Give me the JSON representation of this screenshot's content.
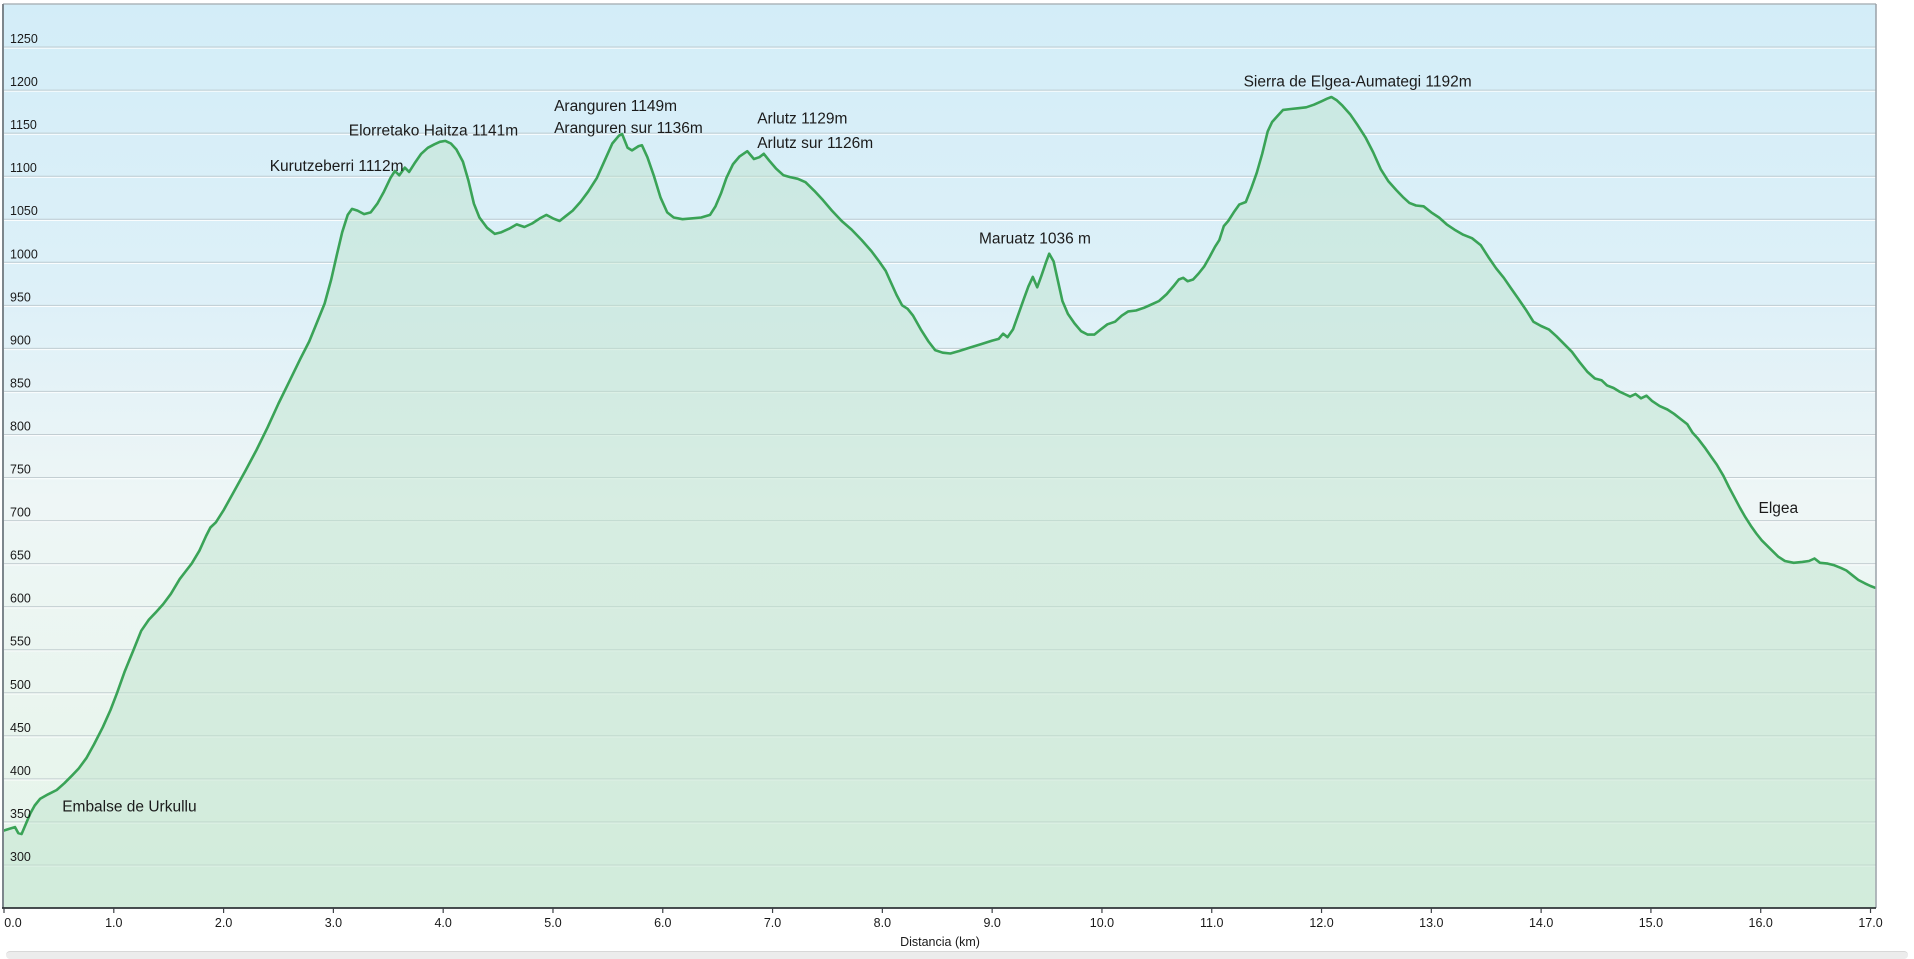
{
  "chart_data": {
    "type": "area",
    "title": "",
    "xlabel": "Distancia (km)",
    "ylabel": "",
    "x_range": [
      0,
      17.05
    ],
    "y_range_drawn": [
      250,
      1300
    ],
    "grid": true,
    "legend": "none",
    "x_ticks": [
      {
        "v": 0,
        "label": "0.0"
      },
      {
        "v": 1,
        "label": "1.0"
      },
      {
        "v": 2,
        "label": "2.0"
      },
      {
        "v": 3,
        "label": "3.0"
      },
      {
        "v": 4,
        "label": "4.0"
      },
      {
        "v": 5,
        "label": "5.0"
      },
      {
        "v": 6,
        "label": "6.0"
      },
      {
        "v": 7,
        "label": "7.0"
      },
      {
        "v": 8,
        "label": "8.0"
      },
      {
        "v": 9,
        "label": "9.0"
      },
      {
        "v": 10,
        "label": "10.0"
      },
      {
        "v": 11,
        "label": "11.0"
      },
      {
        "v": 12,
        "label": "12.0"
      },
      {
        "v": 13,
        "label": "13.0"
      },
      {
        "v": 14,
        "label": "14.0"
      },
      {
        "v": 15,
        "label": "15.0"
      },
      {
        "v": 16,
        "label": "16.0"
      },
      {
        "v": 17,
        "label": "17.0"
      }
    ],
    "y_ticks": [
      1250,
      1200,
      1150,
      1100,
      1050,
      1000,
      950,
      900,
      850,
      800,
      750,
      700,
      650,
      600,
      550,
      500,
      450,
      400,
      350,
      300
    ],
    "annotations": [
      {
        "text": "Embalse de Urkullu",
        "km": 0.53,
        "elev": 362
      },
      {
        "text": "Kurutzeberri 1112m",
        "km": 2.42,
        "elev": 1106
      },
      {
        "text": "Elorretako Haitza 1141m",
        "km": 3.14,
        "elev": 1147
      },
      {
        "text": "Aranguren 1149m",
        "km": 5.01,
        "elev": 1176
      },
      {
        "text": "Aranguren sur 1136m",
        "km": 5.01,
        "elev": 1150
      },
      {
        "text": "Arlutz 1129m",
        "km": 6.86,
        "elev": 1161
      },
      {
        "text": "Arlutz sur 1126m",
        "km": 6.86,
        "elev": 1133
      },
      {
        "text": "Maruatz 1036 m",
        "km": 8.88,
        "elev": 1022
      },
      {
        "text": "Sierra de Elgea-Aumategi 1192m",
        "km": 11.29,
        "elev": 1204
      },
      {
        "text": "Elgea",
        "km": 15.98,
        "elev": 709
      }
    ],
    "series": [
      {
        "name": "elevation_profile",
        "points": [
          [
            0,
            340
          ],
          [
            0.05,
            342
          ],
          [
            0.1,
            344
          ],
          [
            0.13,
            337
          ],
          [
            0.16,
            336
          ],
          [
            0.2,
            348
          ],
          [
            0.24,
            360
          ],
          [
            0.28,
            369
          ],
          [
            0.33,
            377
          ],
          [
            0.4,
            382
          ],
          [
            0.48,
            387
          ],
          [
            0.55,
            395
          ],
          [
            0.62,
            404
          ],
          [
            0.68,
            412
          ],
          [
            0.75,
            424
          ],
          [
            0.82,
            440
          ],
          [
            0.9,
            460
          ],
          [
            0.97,
            480
          ],
          [
            1.03,
            500
          ],
          [
            1.1,
            525
          ],
          [
            1.18,
            550
          ],
          [
            1.25,
            572
          ],
          [
            1.32,
            585
          ],
          [
            1.38,
            593
          ],
          [
            1.45,
            603
          ],
          [
            1.52,
            615
          ],
          [
            1.6,
            632
          ],
          [
            1.66,
            642
          ],
          [
            1.71,
            650
          ],
          [
            1.78,
            665
          ],
          [
            1.84,
            682
          ],
          [
            1.88,
            692
          ],
          [
            1.93,
            698
          ],
          [
            2.0,
            712
          ],
          [
            2.1,
            735
          ],
          [
            2.2,
            758
          ],
          [
            2.3,
            782
          ],
          [
            2.4,
            808
          ],
          [
            2.5,
            836
          ],
          [
            2.6,
            862
          ],
          [
            2.7,
            888
          ],
          [
            2.78,
            908
          ],
          [
            2.85,
            930
          ],
          [
            2.92,
            952
          ],
          [
            2.98,
            980
          ],
          [
            3.03,
            1008
          ],
          [
            3.08,
            1035
          ],
          [
            3.13,
            1055
          ],
          [
            3.17,
            1062
          ],
          [
            3.22,
            1060
          ],
          [
            3.28,
            1056
          ],
          [
            3.34,
            1058
          ],
          [
            3.4,
            1068
          ],
          [
            3.46,
            1082
          ],
          [
            3.52,
            1098
          ],
          [
            3.56,
            1106
          ],
          [
            3.6,
            1101
          ],
          [
            3.65,
            1110
          ],
          [
            3.69,
            1105
          ],
          [
            3.74,
            1115
          ],
          [
            3.8,
            1126
          ],
          [
            3.86,
            1133
          ],
          [
            3.92,
            1137
          ],
          [
            3.97,
            1140
          ],
          [
            4.02,
            1141
          ],
          [
            4.07,
            1138
          ],
          [
            4.12,
            1131
          ],
          [
            4.18,
            1117
          ],
          [
            4.23,
            1095
          ],
          [
            4.28,
            1068
          ],
          [
            4.33,
            1052
          ],
          [
            4.4,
            1040
          ],
          [
            4.47,
            1033
          ],
          [
            4.53,
            1035
          ],
          [
            4.6,
            1039
          ],
          [
            4.67,
            1044
          ],
          [
            4.74,
            1041
          ],
          [
            4.81,
            1045
          ],
          [
            4.88,
            1051
          ],
          [
            4.94,
            1055
          ],
          [
            5.0,
            1051
          ],
          [
            5.06,
            1048
          ],
          [
            5.12,
            1054
          ],
          [
            5.18,
            1060
          ],
          [
            5.25,
            1070
          ],
          [
            5.32,
            1082
          ],
          [
            5.4,
            1098
          ],
          [
            5.47,
            1118
          ],
          [
            5.54,
            1138
          ],
          [
            5.6,
            1147
          ],
          [
            5.63,
            1149
          ],
          [
            5.68,
            1133
          ],
          [
            5.72,
            1130
          ],
          [
            5.78,
            1135
          ],
          [
            5.81,
            1136
          ],
          [
            5.86,
            1122
          ],
          [
            5.92,
            1100
          ],
          [
            5.98,
            1075
          ],
          [
            6.04,
            1058
          ],
          [
            6.1,
            1052
          ],
          [
            6.18,
            1050
          ],
          [
            6.26,
            1051
          ],
          [
            6.35,
            1052
          ],
          [
            6.43,
            1055
          ],
          [
            6.48,
            1065
          ],
          [
            6.53,
            1080
          ],
          [
            6.58,
            1098
          ],
          [
            6.64,
            1114
          ],
          [
            6.7,
            1123
          ],
          [
            6.77,
            1129
          ],
          [
            6.83,
            1120
          ],
          [
            6.88,
            1122
          ],
          [
            6.92,
            1126
          ],
          [
            6.97,
            1118
          ],
          [
            7.03,
            1109
          ],
          [
            7.1,
            1101
          ],
          [
            7.16,
            1099
          ],
          [
            7.23,
            1097
          ],
          [
            7.3,
            1093
          ],
          [
            7.38,
            1083
          ],
          [
            7.46,
            1072
          ],
          [
            7.54,
            1060
          ],
          [
            7.63,
            1048
          ],
          [
            7.72,
            1038
          ],
          [
            7.81,
            1026
          ],
          [
            7.9,
            1013
          ],
          [
            7.97,
            1001
          ],
          [
            8.03,
            990
          ],
          [
            8.08,
            976
          ],
          [
            8.13,
            962
          ],
          [
            8.18,
            950
          ],
          [
            8.23,
            946
          ],
          [
            8.28,
            938
          ],
          [
            8.35,
            922
          ],
          [
            8.42,
            908
          ],
          [
            8.48,
            898
          ],
          [
            8.55,
            895
          ],
          [
            8.62,
            894
          ],
          [
            8.7,
            897
          ],
          [
            8.8,
            901
          ],
          [
            8.9,
            905
          ],
          [
            9.0,
            909
          ],
          [
            9.06,
            911
          ],
          [
            9.1,
            917
          ],
          [
            9.14,
            913
          ],
          [
            9.19,
            922
          ],
          [
            9.24,
            940
          ],
          [
            9.29,
            958
          ],
          [
            9.33,
            972
          ],
          [
            9.37,
            983
          ],
          [
            9.41,
            971
          ],
          [
            9.45,
            985
          ],
          [
            9.49,
            1000
          ],
          [
            9.52,
            1010
          ],
          [
            9.56,
            1001
          ],
          [
            9.6,
            978
          ],
          [
            9.64,
            955
          ],
          [
            9.69,
            940
          ],
          [
            9.75,
            929
          ],
          [
            9.81,
            920
          ],
          [
            9.87,
            916
          ],
          [
            9.93,
            916
          ],
          [
            9.99,
            922
          ],
          [
            10.05,
            928
          ],
          [
            10.12,
            931
          ],
          [
            10.18,
            938
          ],
          [
            10.24,
            943
          ],
          [
            10.31,
            944
          ],
          [
            10.38,
            947
          ],
          [
            10.45,
            951
          ],
          [
            10.52,
            955
          ],
          [
            10.59,
            963
          ],
          [
            10.65,
            972
          ],
          [
            10.7,
            980
          ],
          [
            10.74,
            982
          ],
          [
            10.78,
            978
          ],
          [
            10.83,
            980
          ],
          [
            10.88,
            987
          ],
          [
            10.93,
            995
          ],
          [
            10.98,
            1006
          ],
          [
            11.03,
            1018
          ],
          [
            11.07,
            1026
          ],
          [
            11.11,
            1042
          ],
          [
            11.15,
            1048
          ],
          [
            11.2,
            1058
          ],
          [
            11.25,
            1067
          ],
          [
            11.31,
            1070
          ],
          [
            11.36,
            1086
          ],
          [
            11.41,
            1104
          ],
          [
            11.46,
            1126
          ],
          [
            11.51,
            1152
          ],
          [
            11.55,
            1163
          ],
          [
            11.6,
            1170
          ],
          [
            11.65,
            1177
          ],
          [
            11.72,
            1178
          ],
          [
            11.79,
            1179
          ],
          [
            11.86,
            1180
          ],
          [
            11.93,
            1183
          ],
          [
            12.0,
            1187
          ],
          [
            12.05,
            1190
          ],
          [
            12.09,
            1192
          ],
          [
            12.14,
            1188
          ],
          [
            12.19,
            1182
          ],
          [
            12.26,
            1172
          ],
          [
            12.33,
            1159
          ],
          [
            12.4,
            1145
          ],
          [
            12.47,
            1128
          ],
          [
            12.54,
            1108
          ],
          [
            12.61,
            1094
          ],
          [
            12.68,
            1084
          ],
          [
            12.74,
            1076
          ],
          [
            12.8,
            1069
          ],
          [
            12.86,
            1066
          ],
          [
            12.93,
            1065
          ],
          [
            13.0,
            1058
          ],
          [
            13.07,
            1052
          ],
          [
            13.14,
            1044
          ],
          [
            13.21,
            1038
          ],
          [
            13.29,
            1032
          ],
          [
            13.37,
            1028
          ],
          [
            13.45,
            1020
          ],
          [
            13.52,
            1006
          ],
          [
            13.59,
            993
          ],
          [
            13.66,
            982
          ],
          [
            13.73,
            969
          ],
          [
            13.79,
            958
          ],
          [
            13.86,
            945
          ],
          [
            13.93,
            931
          ],
          [
            14.0,
            926
          ],
          [
            14.07,
            922
          ],
          [
            14.14,
            914
          ],
          [
            14.21,
            905
          ],
          [
            14.28,
            896
          ],
          [
            14.35,
            884
          ],
          [
            14.42,
            873
          ],
          [
            14.49,
            865
          ],
          [
            14.55,
            863
          ],
          [
            14.6,
            857
          ],
          [
            14.66,
            854
          ],
          [
            14.71,
            850
          ],
          [
            14.76,
            847
          ],
          [
            14.81,
            844
          ],
          [
            14.86,
            847
          ],
          [
            14.91,
            842
          ],
          [
            14.96,
            845
          ],
          [
            15.01,
            839
          ],
          [
            15.08,
            833
          ],
          [
            15.15,
            829
          ],
          [
            15.21,
            824
          ],
          [
            15.27,
            818
          ],
          [
            15.33,
            812
          ],
          [
            15.38,
            802
          ],
          [
            15.43,
            795
          ],
          [
            15.49,
            785
          ],
          [
            15.55,
            774
          ],
          [
            15.6,
            765
          ],
          [
            15.66,
            752
          ],
          [
            15.71,
            739
          ],
          [
            15.76,
            727
          ],
          [
            15.81,
            715
          ],
          [
            15.86,
            704
          ],
          [
            15.91,
            694
          ],
          [
            15.96,
            685
          ],
          [
            16.01,
            677
          ],
          [
            16.08,
            668
          ],
          [
            16.16,
            658
          ],
          [
            16.22,
            653
          ],
          [
            16.3,
            651
          ],
          [
            16.38,
            652
          ],
          [
            16.44,
            653
          ],
          [
            16.49,
            656
          ],
          [
            16.54,
            651
          ],
          [
            16.61,
            650
          ],
          [
            16.67,
            648
          ],
          [
            16.73,
            645
          ],
          [
            16.78,
            642
          ],
          [
            16.84,
            636
          ],
          [
            16.89,
            631
          ],
          [
            16.95,
            627
          ],
          [
            17.0,
            624
          ],
          [
            17.04,
            622
          ]
        ]
      }
    ],
    "colors": {
      "line": "#3aa357",
      "area_fill": "#bfe3cd",
      "bg_top": "#d3edf8",
      "bg_mid": "#eef6f6",
      "bg_bottom": "#e4f4e9",
      "grid": "#b6c0c6",
      "text": "#1a1a1a",
      "axis": "#2f3438"
    }
  }
}
